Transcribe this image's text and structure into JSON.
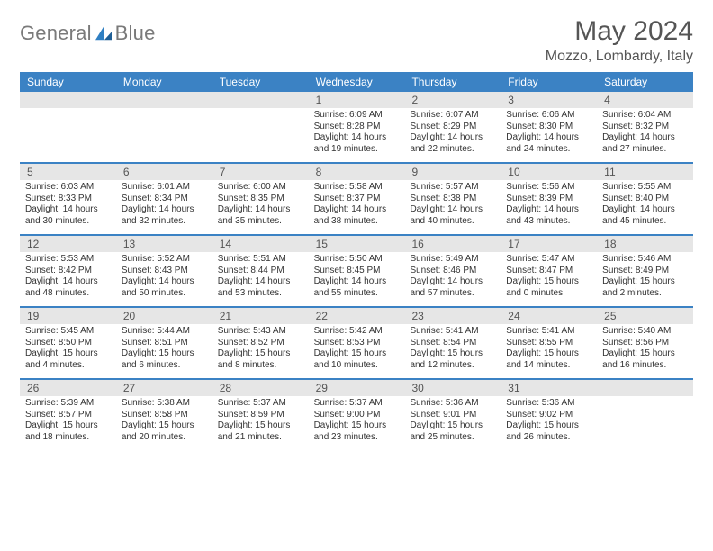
{
  "brand": {
    "name_a": "General",
    "name_b": "Blue"
  },
  "header": {
    "title": "May 2024",
    "location": "Mozzo, Lombardy, Italy"
  },
  "style": {
    "header_bar_color": "#3b82c4",
    "daynum_bg": "#e6e6e6",
    "rule_color": "#3b82c4",
    "page_bg": "#ffffff",
    "text_color": "#333333",
    "title_fontsize": 30,
    "location_fontsize": 16,
    "weekday_fontsize": 12,
    "daynum_fontsize": 12,
    "cell_fontsize": 10
  },
  "weekdays": [
    "Sunday",
    "Monday",
    "Tuesday",
    "Wednesday",
    "Thursday",
    "Friday",
    "Saturday"
  ],
  "weeks": [
    [
      {
        "n": "",
        "t": ""
      },
      {
        "n": "",
        "t": ""
      },
      {
        "n": "",
        "t": ""
      },
      {
        "n": "1",
        "t": "Sunrise: 6:09 AM\nSunset: 8:28 PM\nDaylight: 14 hours and 19 minutes."
      },
      {
        "n": "2",
        "t": "Sunrise: 6:07 AM\nSunset: 8:29 PM\nDaylight: 14 hours and 22 minutes."
      },
      {
        "n": "3",
        "t": "Sunrise: 6:06 AM\nSunset: 8:30 PM\nDaylight: 14 hours and 24 minutes."
      },
      {
        "n": "4",
        "t": "Sunrise: 6:04 AM\nSunset: 8:32 PM\nDaylight: 14 hours and 27 minutes."
      }
    ],
    [
      {
        "n": "5",
        "t": "Sunrise: 6:03 AM\nSunset: 8:33 PM\nDaylight: 14 hours and 30 minutes."
      },
      {
        "n": "6",
        "t": "Sunrise: 6:01 AM\nSunset: 8:34 PM\nDaylight: 14 hours and 32 minutes."
      },
      {
        "n": "7",
        "t": "Sunrise: 6:00 AM\nSunset: 8:35 PM\nDaylight: 14 hours and 35 minutes."
      },
      {
        "n": "8",
        "t": "Sunrise: 5:58 AM\nSunset: 8:37 PM\nDaylight: 14 hours and 38 minutes."
      },
      {
        "n": "9",
        "t": "Sunrise: 5:57 AM\nSunset: 8:38 PM\nDaylight: 14 hours and 40 minutes."
      },
      {
        "n": "10",
        "t": "Sunrise: 5:56 AM\nSunset: 8:39 PM\nDaylight: 14 hours and 43 minutes."
      },
      {
        "n": "11",
        "t": "Sunrise: 5:55 AM\nSunset: 8:40 PM\nDaylight: 14 hours and 45 minutes."
      }
    ],
    [
      {
        "n": "12",
        "t": "Sunrise: 5:53 AM\nSunset: 8:42 PM\nDaylight: 14 hours and 48 minutes."
      },
      {
        "n": "13",
        "t": "Sunrise: 5:52 AM\nSunset: 8:43 PM\nDaylight: 14 hours and 50 minutes."
      },
      {
        "n": "14",
        "t": "Sunrise: 5:51 AM\nSunset: 8:44 PM\nDaylight: 14 hours and 53 minutes."
      },
      {
        "n": "15",
        "t": "Sunrise: 5:50 AM\nSunset: 8:45 PM\nDaylight: 14 hours and 55 minutes."
      },
      {
        "n": "16",
        "t": "Sunrise: 5:49 AM\nSunset: 8:46 PM\nDaylight: 14 hours and 57 minutes."
      },
      {
        "n": "17",
        "t": "Sunrise: 5:47 AM\nSunset: 8:47 PM\nDaylight: 15 hours and 0 minutes."
      },
      {
        "n": "18",
        "t": "Sunrise: 5:46 AM\nSunset: 8:49 PM\nDaylight: 15 hours and 2 minutes."
      }
    ],
    [
      {
        "n": "19",
        "t": "Sunrise: 5:45 AM\nSunset: 8:50 PM\nDaylight: 15 hours and 4 minutes."
      },
      {
        "n": "20",
        "t": "Sunrise: 5:44 AM\nSunset: 8:51 PM\nDaylight: 15 hours and 6 minutes."
      },
      {
        "n": "21",
        "t": "Sunrise: 5:43 AM\nSunset: 8:52 PM\nDaylight: 15 hours and 8 minutes."
      },
      {
        "n": "22",
        "t": "Sunrise: 5:42 AM\nSunset: 8:53 PM\nDaylight: 15 hours and 10 minutes."
      },
      {
        "n": "23",
        "t": "Sunrise: 5:41 AM\nSunset: 8:54 PM\nDaylight: 15 hours and 12 minutes."
      },
      {
        "n": "24",
        "t": "Sunrise: 5:41 AM\nSunset: 8:55 PM\nDaylight: 15 hours and 14 minutes."
      },
      {
        "n": "25",
        "t": "Sunrise: 5:40 AM\nSunset: 8:56 PM\nDaylight: 15 hours and 16 minutes."
      }
    ],
    [
      {
        "n": "26",
        "t": "Sunrise: 5:39 AM\nSunset: 8:57 PM\nDaylight: 15 hours and 18 minutes."
      },
      {
        "n": "27",
        "t": "Sunrise: 5:38 AM\nSunset: 8:58 PM\nDaylight: 15 hours and 20 minutes."
      },
      {
        "n": "28",
        "t": "Sunrise: 5:37 AM\nSunset: 8:59 PM\nDaylight: 15 hours and 21 minutes."
      },
      {
        "n": "29",
        "t": "Sunrise: 5:37 AM\nSunset: 9:00 PM\nDaylight: 15 hours and 23 minutes."
      },
      {
        "n": "30",
        "t": "Sunrise: 5:36 AM\nSunset: 9:01 PM\nDaylight: 15 hours and 25 minutes."
      },
      {
        "n": "31",
        "t": "Sunrise: 5:36 AM\nSunset: 9:02 PM\nDaylight: 15 hours and 26 minutes."
      },
      {
        "n": "",
        "t": ""
      }
    ]
  ]
}
